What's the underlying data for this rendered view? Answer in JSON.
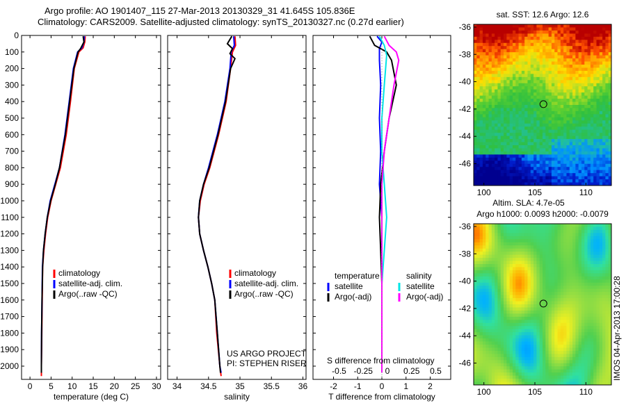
{
  "titles": {
    "line1": "Argo profile: AO 1901407_115 27-Mar-2013 20130329_31 41.645S 105.836E",
    "line2": "Climatology: CARS2009. Satellite-adjusted climatology: synTS_20130327.nc (0.27d earlier)"
  },
  "stamp": "IMOS 04-Apr-2013 17:00:28",
  "colors": {
    "climatology": "#ff0000",
    "satellite": "#0000ff",
    "argo": "#000000",
    "salinity_satellite": "#00e5e5",
    "salinity_argo": "#ff00ff"
  },
  "chart_data": [
    {
      "type": "line",
      "id": "temperature",
      "xlabel": "temperature (deg C)",
      "xlim": [
        -2,
        31
      ],
      "ylim": [
        2080,
        0
      ],
      "xticks": [
        "0",
        "5",
        "10",
        "15",
        "20",
        "25",
        "30"
      ],
      "xtick_values": [
        0,
        5,
        10,
        15,
        20,
        25,
        30
      ],
      "yticks": [
        "0",
        "100",
        "200",
        "300",
        "400",
        "500",
        "600",
        "700",
        "800",
        "900",
        "1000",
        "1100",
        "1200",
        "1300",
        "1400",
        "1500",
        "1600",
        "1700",
        "1800",
        "1900",
        "2000"
      ],
      "legend": [
        "climatology",
        "satellite-adj. clim.",
        "Argo(..raw -QC)"
      ],
      "series": [
        {
          "name": "climatology",
          "color": "#ff0000",
          "points": [
            [
              13.1,
              5
            ],
            [
              13.0,
              40
            ],
            [
              12.6,
              75
            ],
            [
              11.6,
              100
            ],
            [
              10.5,
              200
            ],
            [
              9.6,
              400
            ],
            [
              8.6,
              600
            ],
            [
              7.2,
              800
            ],
            [
              6.1,
              900
            ],
            [
              5.0,
              1000
            ],
            [
              4.2,
              1100
            ],
            [
              3.7,
              1200
            ],
            [
              3.3,
              1300
            ],
            [
              3.0,
              1400
            ],
            [
              2.9,
              1600
            ],
            [
              2.8,
              1800
            ],
            [
              2.7,
              2000
            ],
            [
              2.7,
              2060
            ]
          ]
        },
        {
          "name": "satellite-adj. clim.",
          "color": "#0000ff",
          "points": [
            [
              12.9,
              5
            ],
            [
              12.8,
              40
            ],
            [
              12.3,
              75
            ],
            [
              11.3,
              100
            ],
            [
              10.3,
              200
            ],
            [
              9.3,
              400
            ],
            [
              8.3,
              600
            ],
            [
              7.0,
              800
            ],
            [
              5.9,
              900
            ],
            [
              4.8,
              1000
            ],
            [
              4.1,
              1100
            ],
            [
              3.6,
              1200
            ],
            [
              3.2,
              1300
            ],
            [
              2.95,
              1400
            ],
            [
              2.85,
              1600
            ],
            [
              2.75,
              1800
            ],
            [
              2.7,
              2000
            ],
            [
              2.7,
              2040
            ]
          ]
        },
        {
          "name": "Argo(..raw -QC)",
          "color": "#000000",
          "points": [
            [
              12.6,
              5
            ],
            [
              12.8,
              40
            ],
            [
              12.0,
              80
            ],
            [
              11.4,
              100
            ],
            [
              10.4,
              200
            ],
            [
              9.4,
              400
            ],
            [
              8.4,
              600
            ],
            [
              7.0,
              800
            ],
            [
              6.0,
              900
            ],
            [
              4.9,
              1000
            ],
            [
              4.1,
              1100
            ],
            [
              3.6,
              1200
            ],
            [
              3.2,
              1300
            ],
            [
              3.0,
              1400
            ],
            [
              2.85,
              1600
            ],
            [
              2.75,
              1800
            ],
            [
              2.7,
              2000
            ],
            [
              2.7,
              2040
            ]
          ]
        }
      ]
    },
    {
      "type": "line",
      "id": "salinity",
      "xlabel": "salinity",
      "xlim": [
        33.85,
        36.05
      ],
      "ylim": [
        2080,
        0
      ],
      "xticks": [
        "34",
        "34.5",
        "35",
        "35.5",
        "36"
      ],
      "xtick_values": [
        34,
        34.5,
        35,
        35.5,
        36
      ],
      "legend": [
        "climatology",
        "satellite-adj. clim.",
        "Argo(..raw -QC)"
      ],
      "annotation": [
        "US ARGO PROJECT",
        "PI: STEPHEN RISER"
      ],
      "series": [
        {
          "name": "climatology",
          "color": "#ff0000",
          "points": [
            [
              34.92,
              5
            ],
            [
              34.93,
              60
            ],
            [
              34.88,
              100
            ],
            [
              34.85,
              200
            ],
            [
              34.78,
              400
            ],
            [
              34.66,
              600
            ],
            [
              34.52,
              800
            ],
            [
              34.43,
              900
            ],
            [
              34.37,
              1000
            ],
            [
              34.34,
              1100
            ],
            [
              34.36,
              1200
            ],
            [
              34.42,
              1300
            ],
            [
              34.49,
              1400
            ],
            [
              34.55,
              1500
            ],
            [
              34.6,
              1600
            ],
            [
              34.63,
              1800
            ],
            [
              34.68,
              2000
            ],
            [
              34.7,
              2060
            ]
          ]
        },
        {
          "name": "satellite-adj. clim.",
          "color": "#0000ff",
          "points": [
            [
              34.9,
              5
            ],
            [
              34.91,
              60
            ],
            [
              34.86,
              100
            ],
            [
              34.84,
              200
            ],
            [
              34.76,
              400
            ],
            [
              34.64,
              600
            ],
            [
              34.5,
              800
            ],
            [
              34.42,
              900
            ],
            [
              34.36,
              1000
            ],
            [
              34.34,
              1100
            ],
            [
              34.36,
              1200
            ],
            [
              34.42,
              1300
            ],
            [
              34.49,
              1400
            ],
            [
              34.55,
              1500
            ],
            [
              34.6,
              1600
            ],
            [
              34.64,
              1800
            ],
            [
              34.68,
              2000
            ],
            [
              34.7,
              2040
            ]
          ]
        },
        {
          "name": "Argo(..raw -QC)",
          "color": "#000000",
          "points": [
            [
              34.87,
              5
            ],
            [
              34.8,
              50
            ],
            [
              34.88,
              80
            ],
            [
              34.84,
              110
            ],
            [
              34.92,
              140
            ],
            [
              34.85,
              200
            ],
            [
              34.77,
              400
            ],
            [
              34.65,
              600
            ],
            [
              34.51,
              800
            ],
            [
              34.42,
              900
            ],
            [
              34.36,
              1000
            ],
            [
              34.34,
              1100
            ],
            [
              34.36,
              1200
            ],
            [
              34.42,
              1300
            ],
            [
              34.49,
              1400
            ],
            [
              34.55,
              1500
            ],
            [
              34.6,
              1600
            ],
            [
              34.64,
              1800
            ],
            [
              34.68,
              2000
            ],
            [
              34.69,
              2040
            ]
          ]
        }
      ]
    },
    {
      "type": "line",
      "id": "difference",
      "xlabel": "T difference from climatology",
      "xlabel_top": "S difference from climatology",
      "xlim": [
        -2.85,
        2.85
      ],
      "ylim": [
        2080,
        0
      ],
      "xticks": [
        "-2",
        "-1",
        "0",
        "1",
        "2"
      ],
      "xtick_values": [
        -2,
        -1,
        0,
        1,
        2
      ],
      "xticks_top": [
        "-0.5",
        "-0.25",
        "0",
        "0.25",
        "0.5"
      ],
      "xtick_top_values": [
        -2,
        -1,
        0,
        1,
        2
      ],
      "legend_temperature_title": "temperature",
      "legend_salinity_title": "salinity",
      "legend_temperature": [
        "satellite",
        "Argo(-adj)"
      ],
      "legend_salinity": [
        "satellite",
        "Argo(-adj)"
      ],
      "series": [
        {
          "name": "satellite",
          "group": "temperature",
          "color": "#0000ff",
          "points": [
            [
              -0.2,
              5
            ],
            [
              0,
              40
            ],
            [
              -0.1,
              80
            ],
            [
              -0.1,
              150
            ],
            [
              -0.05,
              300
            ],
            [
              -0.1,
              500
            ],
            [
              -0.05,
              700
            ],
            [
              -0.1,
              900
            ],
            [
              0,
              1100
            ],
            [
              0,
              1300
            ],
            [
              0,
              1500
            ],
            [
              0,
              2040
            ]
          ]
        },
        {
          "name": "Argo(-adj)",
          "group": "temperature",
          "color": "#000000",
          "points": [
            [
              -0.5,
              5
            ],
            [
              -0.3,
              60
            ],
            [
              0.2,
              100
            ],
            [
              0.4,
              150
            ],
            [
              0.6,
              300
            ],
            [
              0.3,
              500
            ],
            [
              0.1,
              700
            ],
            [
              -0.05,
              900
            ],
            [
              -0.1,
              1100
            ],
            [
              -0.05,
              1300
            ],
            [
              0,
              1500
            ],
            [
              0,
              2040
            ]
          ]
        },
        {
          "name": "satellite",
          "group": "salinity",
          "color": "#00e5e5",
          "points": [
            [
              -0.1,
              5
            ],
            [
              0.1,
              60
            ],
            [
              0.2,
              120
            ],
            [
              0.1,
              300
            ],
            [
              0,
              500
            ],
            [
              0,
              700
            ],
            [
              0.1,
              900
            ],
            [
              0.2,
              1100
            ],
            [
              0.1,
              1300
            ],
            [
              0,
              1500
            ],
            [
              0,
              2040
            ]
          ]
        },
        {
          "name": "Argo(-adj)",
          "group": "salinity",
          "color": "#ff00ff",
          "points": [
            [
              0.1,
              5
            ],
            [
              0.3,
              60
            ],
            [
              0.6,
              100
            ],
            [
              0.7,
              150
            ],
            [
              0.5,
              300
            ],
            [
              0.3,
              500
            ],
            [
              0.1,
              700
            ],
            [
              0,
              900
            ],
            [
              0,
              1200
            ],
            [
              0,
              1500
            ],
            [
              0,
              2040
            ]
          ]
        }
      ]
    },
    {
      "type": "heatmap",
      "id": "sst-map",
      "title": "sat. SST: 12.6 Argo: 12.6",
      "xlim": [
        99,
        112.5
      ],
      "ylim": [
        -47.6,
        -35.8
      ],
      "xticks": [
        "100",
        "105",
        "110"
      ],
      "xtick_values": [
        100,
        105,
        110
      ],
      "yticks": [
        "-36",
        "-38",
        "-40",
        "-42",
        "-44",
        "-46"
      ],
      "ytick_values": [
        -36,
        -38,
        -40,
        -42,
        -44,
        -46
      ],
      "marker": [
        105.836,
        -41.645
      ]
    },
    {
      "type": "heatmap",
      "id": "sla-map",
      "title": "Altim. SLA: 4.7e-05",
      "subtitle": "Argo h1000: 0.0093 h2000: -0.0079",
      "xlim": [
        99,
        112.5
      ],
      "ylim": [
        -47.6,
        -35.8
      ],
      "xticks": [
        "100",
        "105",
        "110"
      ],
      "xtick_values": [
        100,
        105,
        110
      ],
      "yticks": [
        "-36",
        "-38",
        "-40",
        "-42",
        "-44",
        "-46"
      ],
      "ytick_values": [
        -36,
        -38,
        -40,
        -42,
        -44,
        -46
      ],
      "marker": [
        105.836,
        -41.645
      ]
    }
  ]
}
